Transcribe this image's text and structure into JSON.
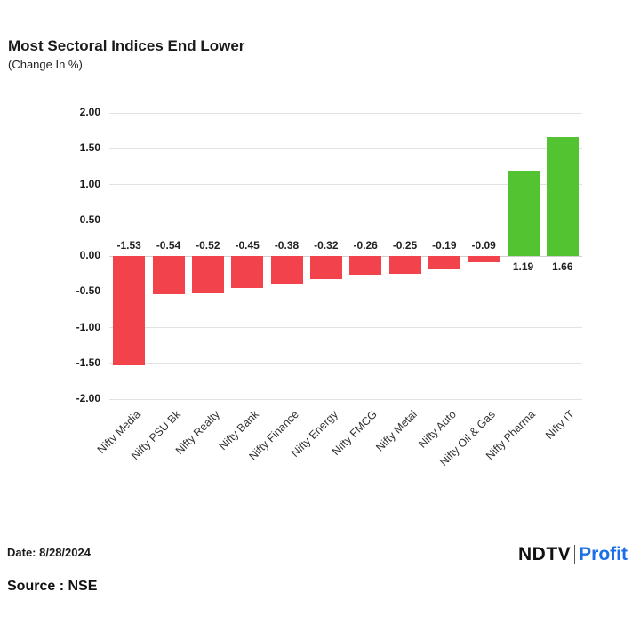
{
  "header": {
    "title": "Most Sectoral Indices End Lower",
    "subtitle": "(Change In %)"
  },
  "chart_data": {
    "type": "bar",
    "title": "Most Sectoral Indices End Lower",
    "subtitle": "(Change In %)",
    "categories": [
      "Nifty Media",
      "Nifty PSU Bk",
      "Nifty Realty",
      "Nifty Bank",
      "Nifty Finance",
      "Nifty Energy",
      "Nifty FMCG",
      "Nifty Metal",
      "Nifty Auto",
      "Nifty Oil & Gas",
      "Nifty Pharma",
      "Nifty IT"
    ],
    "values": [
      -1.53,
      -0.54,
      -0.52,
      -0.45,
      -0.38,
      -0.32,
      -0.26,
      -0.25,
      -0.19,
      -0.09,
      1.19,
      1.66
    ],
    "ylim": [
      -2.0,
      2.0
    ],
    "ytick_step": 0.5,
    "grid": true,
    "legend": "none",
    "colors": {
      "negative": "#f2434d",
      "positive": "#53c331"
    }
  },
  "footer": {
    "date_label": "Date: 8/28/2024",
    "source_label": "Source : NSE",
    "logo": {
      "ndtv": "NDTV",
      "profit": "Profit",
      "profit_color": "#1b6fe8"
    }
  }
}
